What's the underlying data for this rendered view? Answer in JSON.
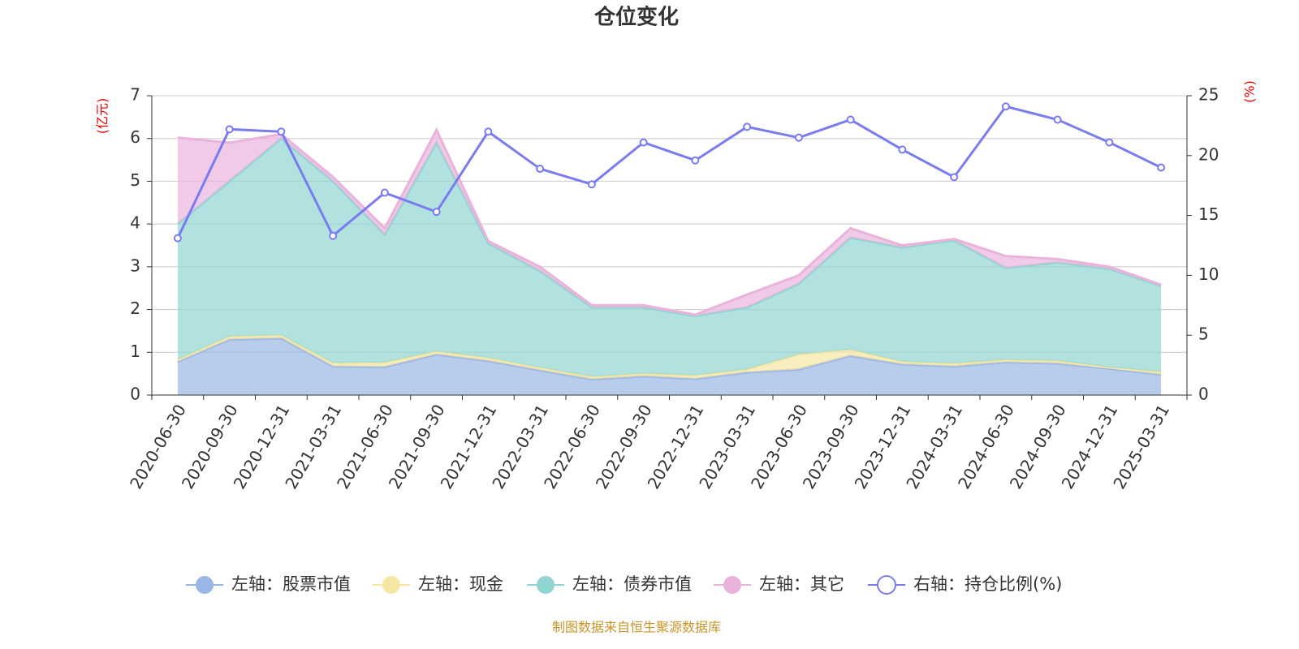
{
  "chart_data": {
    "type": "stacked_area_line",
    "title": "仓位变化",
    "y_label": "(亿元)",
    "y2_label": "(%)",
    "source": "制图数据来自恒生聚源数据库",
    "categories": [
      "2020-06-30",
      "2020-09-30",
      "2020-12-31",
      "2021-03-31",
      "2021-06-30",
      "2021-09-30",
      "2021-12-31",
      "2022-03-31",
      "2022-06-30",
      "2022-09-30",
      "2022-12-31",
      "2023-03-31",
      "2023-06-30",
      "2023-09-30",
      "2023-12-31",
      "2024-03-31",
      "2024-06-30",
      "2024-09-30",
      "2024-12-31",
      "2025-03-31"
    ],
    "series": [
      {
        "name": "左轴：股票市值",
        "color": "#9ab6e4",
        "values": [
          0.78,
          1.3,
          1.33,
          0.67,
          0.66,
          0.95,
          0.8,
          0.58,
          0.37,
          0.44,
          0.38,
          0.53,
          0.6,
          0.92,
          0.72,
          0.67,
          0.77,
          0.74,
          0.62,
          0.48
        ]
      },
      {
        "name": "左轴：现金",
        "color": "#f7e7a5",
        "values": [
          0.05,
          0.07,
          0.07,
          0.08,
          0.1,
          0.07,
          0.07,
          0.06,
          0.06,
          0.06,
          0.08,
          0.07,
          0.35,
          0.14,
          0.06,
          0.07,
          0.05,
          0.06,
          0.03,
          0.06
        ]
      },
      {
        "name": "左轴：债券市值",
        "color": "#91d5d3",
        "values": [
          3.17,
          3.63,
          4.6,
          4.25,
          2.99,
          4.88,
          2.68,
          2.26,
          1.62,
          1.55,
          1.39,
          1.45,
          1.65,
          2.62,
          2.67,
          2.88,
          2.15,
          2.3,
          2.3,
          2.01
        ]
      },
      {
        "name": "左轴：其它",
        "color": "#e9b3dc",
        "values": [
          2.02,
          0.9,
          0.1,
          0.1,
          0.15,
          0.3,
          0.05,
          0.1,
          0.05,
          0.05,
          0.03,
          0.3,
          0.2,
          0.22,
          0.05,
          0.03,
          0.28,
          0.08,
          0.05,
          0.03
        ]
      },
      {
        "name": "右轴：持仓比例(%)",
        "color": "#7b7bf0",
        "axis": "y2",
        "values": [
          13.1,
          22.2,
          22.0,
          13.3,
          16.9,
          15.3,
          22.0,
          18.9,
          17.6,
          21.1,
          19.6,
          22.4,
          21.5,
          23.0,
          20.5,
          18.2,
          24.1,
          23.0,
          21.1,
          19.0
        ]
      }
    ],
    "ylim": [
      0,
      7
    ],
    "yticks": [
      0,
      1,
      2,
      3,
      4,
      5,
      6,
      7
    ],
    "y2lim": [
      0,
      25
    ],
    "y2ticks": [
      0,
      5,
      10,
      15,
      20,
      25
    ],
    "grid": true
  }
}
